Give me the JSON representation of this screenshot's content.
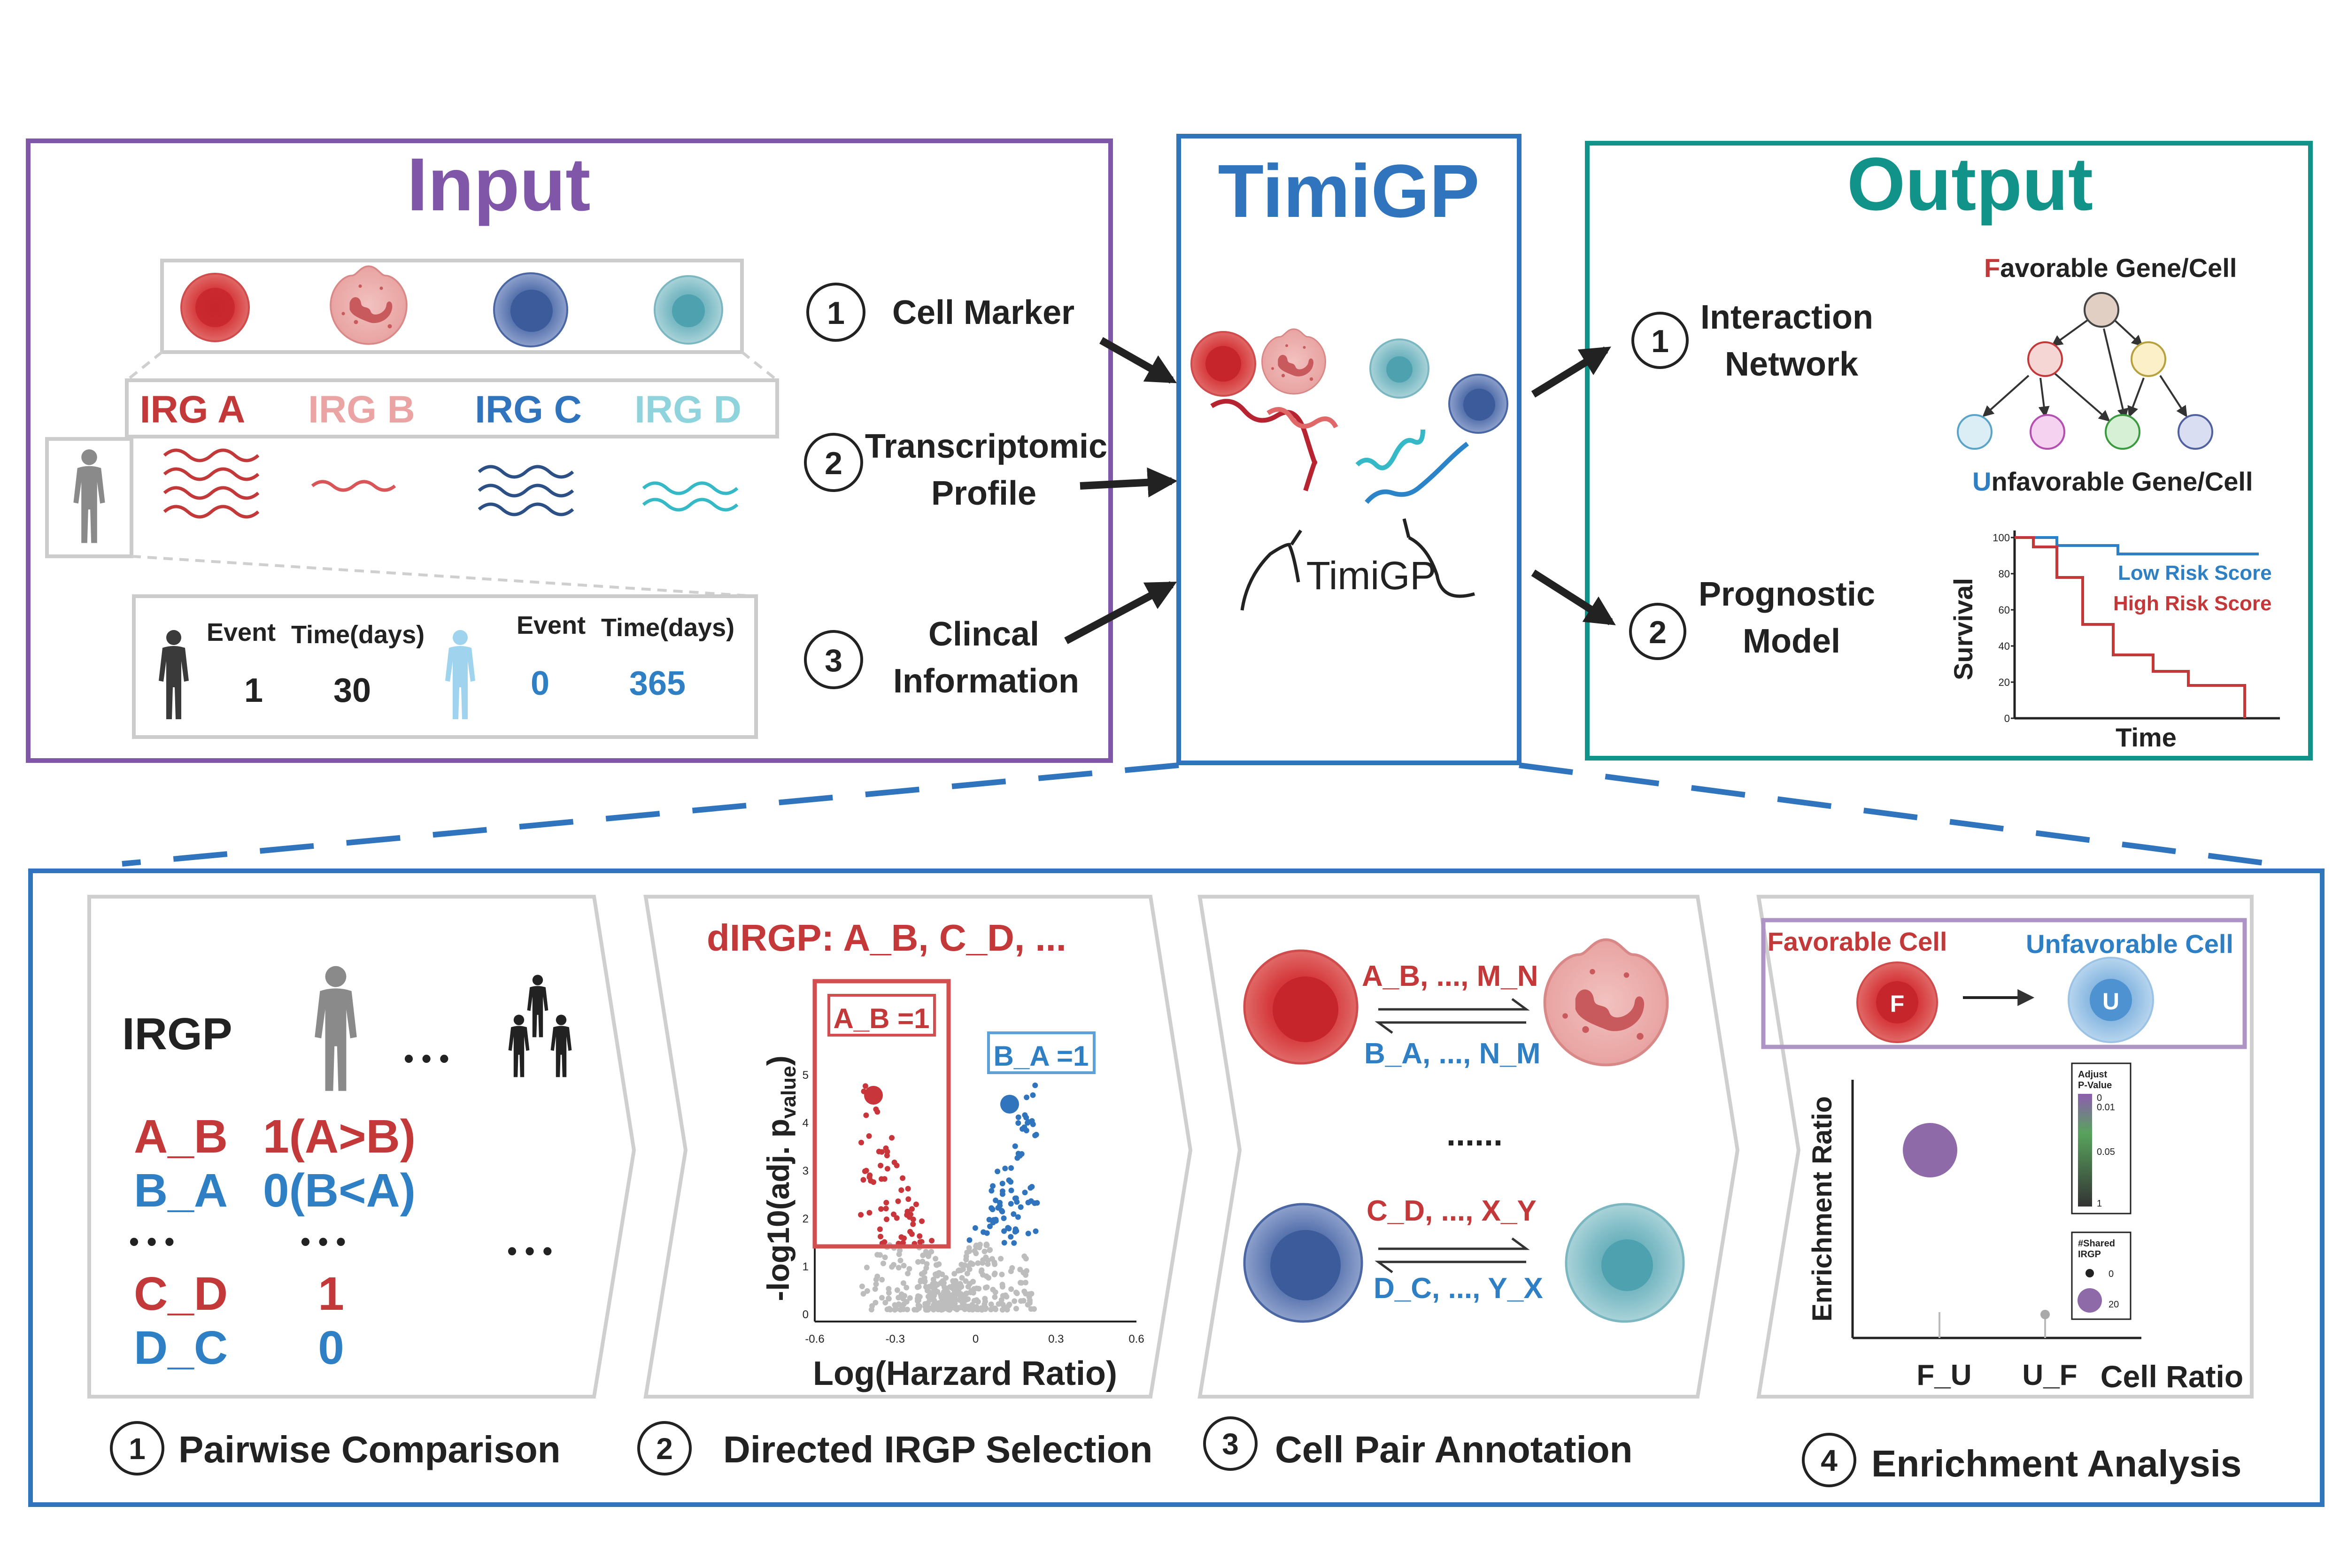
{
  "colors": {
    "purple": "#7f56a8",
    "blue": "#2f74bd",
    "teal": "#12938a",
    "red": "#c33838",
    "steelblue": "#2f7fc4",
    "pink": "#e9a4a3",
    "navy": "#3e5f9c",
    "cyan": "#54c3d1",
    "grey": "#c9c9c9",
    "dark": "#222222"
  },
  "input": {
    "title": "Input",
    "irg_labels": [
      "IRG A",
      "IRG B",
      "IRG C",
      "IRG D"
    ],
    "event_label": "Event",
    "time_label": "Time(days)",
    "patient1": {
      "event": "1",
      "time": "30"
    },
    "patient2": {
      "event": "0",
      "time": "365"
    }
  },
  "inputs_list": {
    "n1": "1",
    "n2": "2",
    "n3": "3",
    "cell_marker": "Cell Marker",
    "transcriptomic_l1": "Transcriptomic",
    "transcriptomic_l2": "Profile",
    "clinical_l1": "Clincal",
    "clinical_l2": "Information"
  },
  "center": {
    "title": "TimiGP",
    "logo_text": "TimiGP"
  },
  "output": {
    "title": "Output",
    "n1": "1",
    "n2": "2",
    "interaction_l1": "Interaction",
    "interaction_l2": "Network",
    "prognostic_l1": "Prognostic",
    "prognostic_l2": "Model",
    "favorable_first": "F",
    "favorable_rest": "avorable Gene/Cell",
    "unfavorable_first": "U",
    "unfavorable_rest": "nfavorable Gene/Cell",
    "km": {
      "ylabel": "Survival",
      "xlabel": "Time",
      "yticks": [
        "100",
        "80",
        "60",
        "40",
        "20",
        "0"
      ],
      "low_label": "Low Risk Score",
      "high_label": "High Risk Score"
    }
  },
  "steps": {
    "s1_num": "1",
    "s1_label": "Pairwise  Comparison",
    "s2_num": "2",
    "s2_label": "Directed IRGP Selection",
    "s3_num": "3",
    "s3_label": "Cell Pair Annotation",
    "s4_num": "4",
    "s4_label": "Enrichment Analysis"
  },
  "panel1": {
    "irgp": "IRGP",
    "ellipsis": "• • •",
    "rows": [
      {
        "pair": "A_B",
        "value": "1(A>B)"
      },
      {
        "pair": "B_A",
        "value": "0(B<A)"
      },
      {
        "pair": "C_D",
        "value": "1"
      },
      {
        "pair": "D_C",
        "value": "0"
      }
    ]
  },
  "panel2": {
    "title": "dIRGP: A_B,  C_D,  ...",
    "box_red": "A_B =1",
    "box_blue": "B_A =1",
    "ylabel_main": "-log10(adj. p",
    "ylabel_sub": "value",
    "ylabel_end": ")",
    "xlabel": "Log(Harzard Ratio)",
    "xticks": [
      "-0.6",
      "-0.3",
      "0",
      "0.3",
      "0.6"
    ],
    "yticks": [
      "0",
      "1",
      "2",
      "3",
      "4",
      "5"
    ]
  },
  "panel3": {
    "top_red": "A_B, ...,  M_N",
    "top_blue": "B_A, ...,  N_M",
    "dots": "......",
    "bot_red": "C_D, ...,  X_Y",
    "bot_blue": "D_C, ...,  Y_X"
  },
  "panel4": {
    "favorable_cell": "Favorable Cell",
    "unfavorable_cell": "Unfavorable Cell",
    "f": "F",
    "u": "U",
    "ylabel": "Enrichment Ratio",
    "xlabel": "Cell Ratio",
    "xcat1": "F_U",
    "xcat2": "U_F",
    "legend1_t1": "Adjust",
    "legend1_t2": "P-Value",
    "legend1_ticks": [
      "0",
      "0.01",
      "0.05",
      "1"
    ],
    "legend2_t1": "#Shared",
    "legend2_t2": "IRGP",
    "legend2_ticks": [
      "0",
      "20"
    ]
  }
}
